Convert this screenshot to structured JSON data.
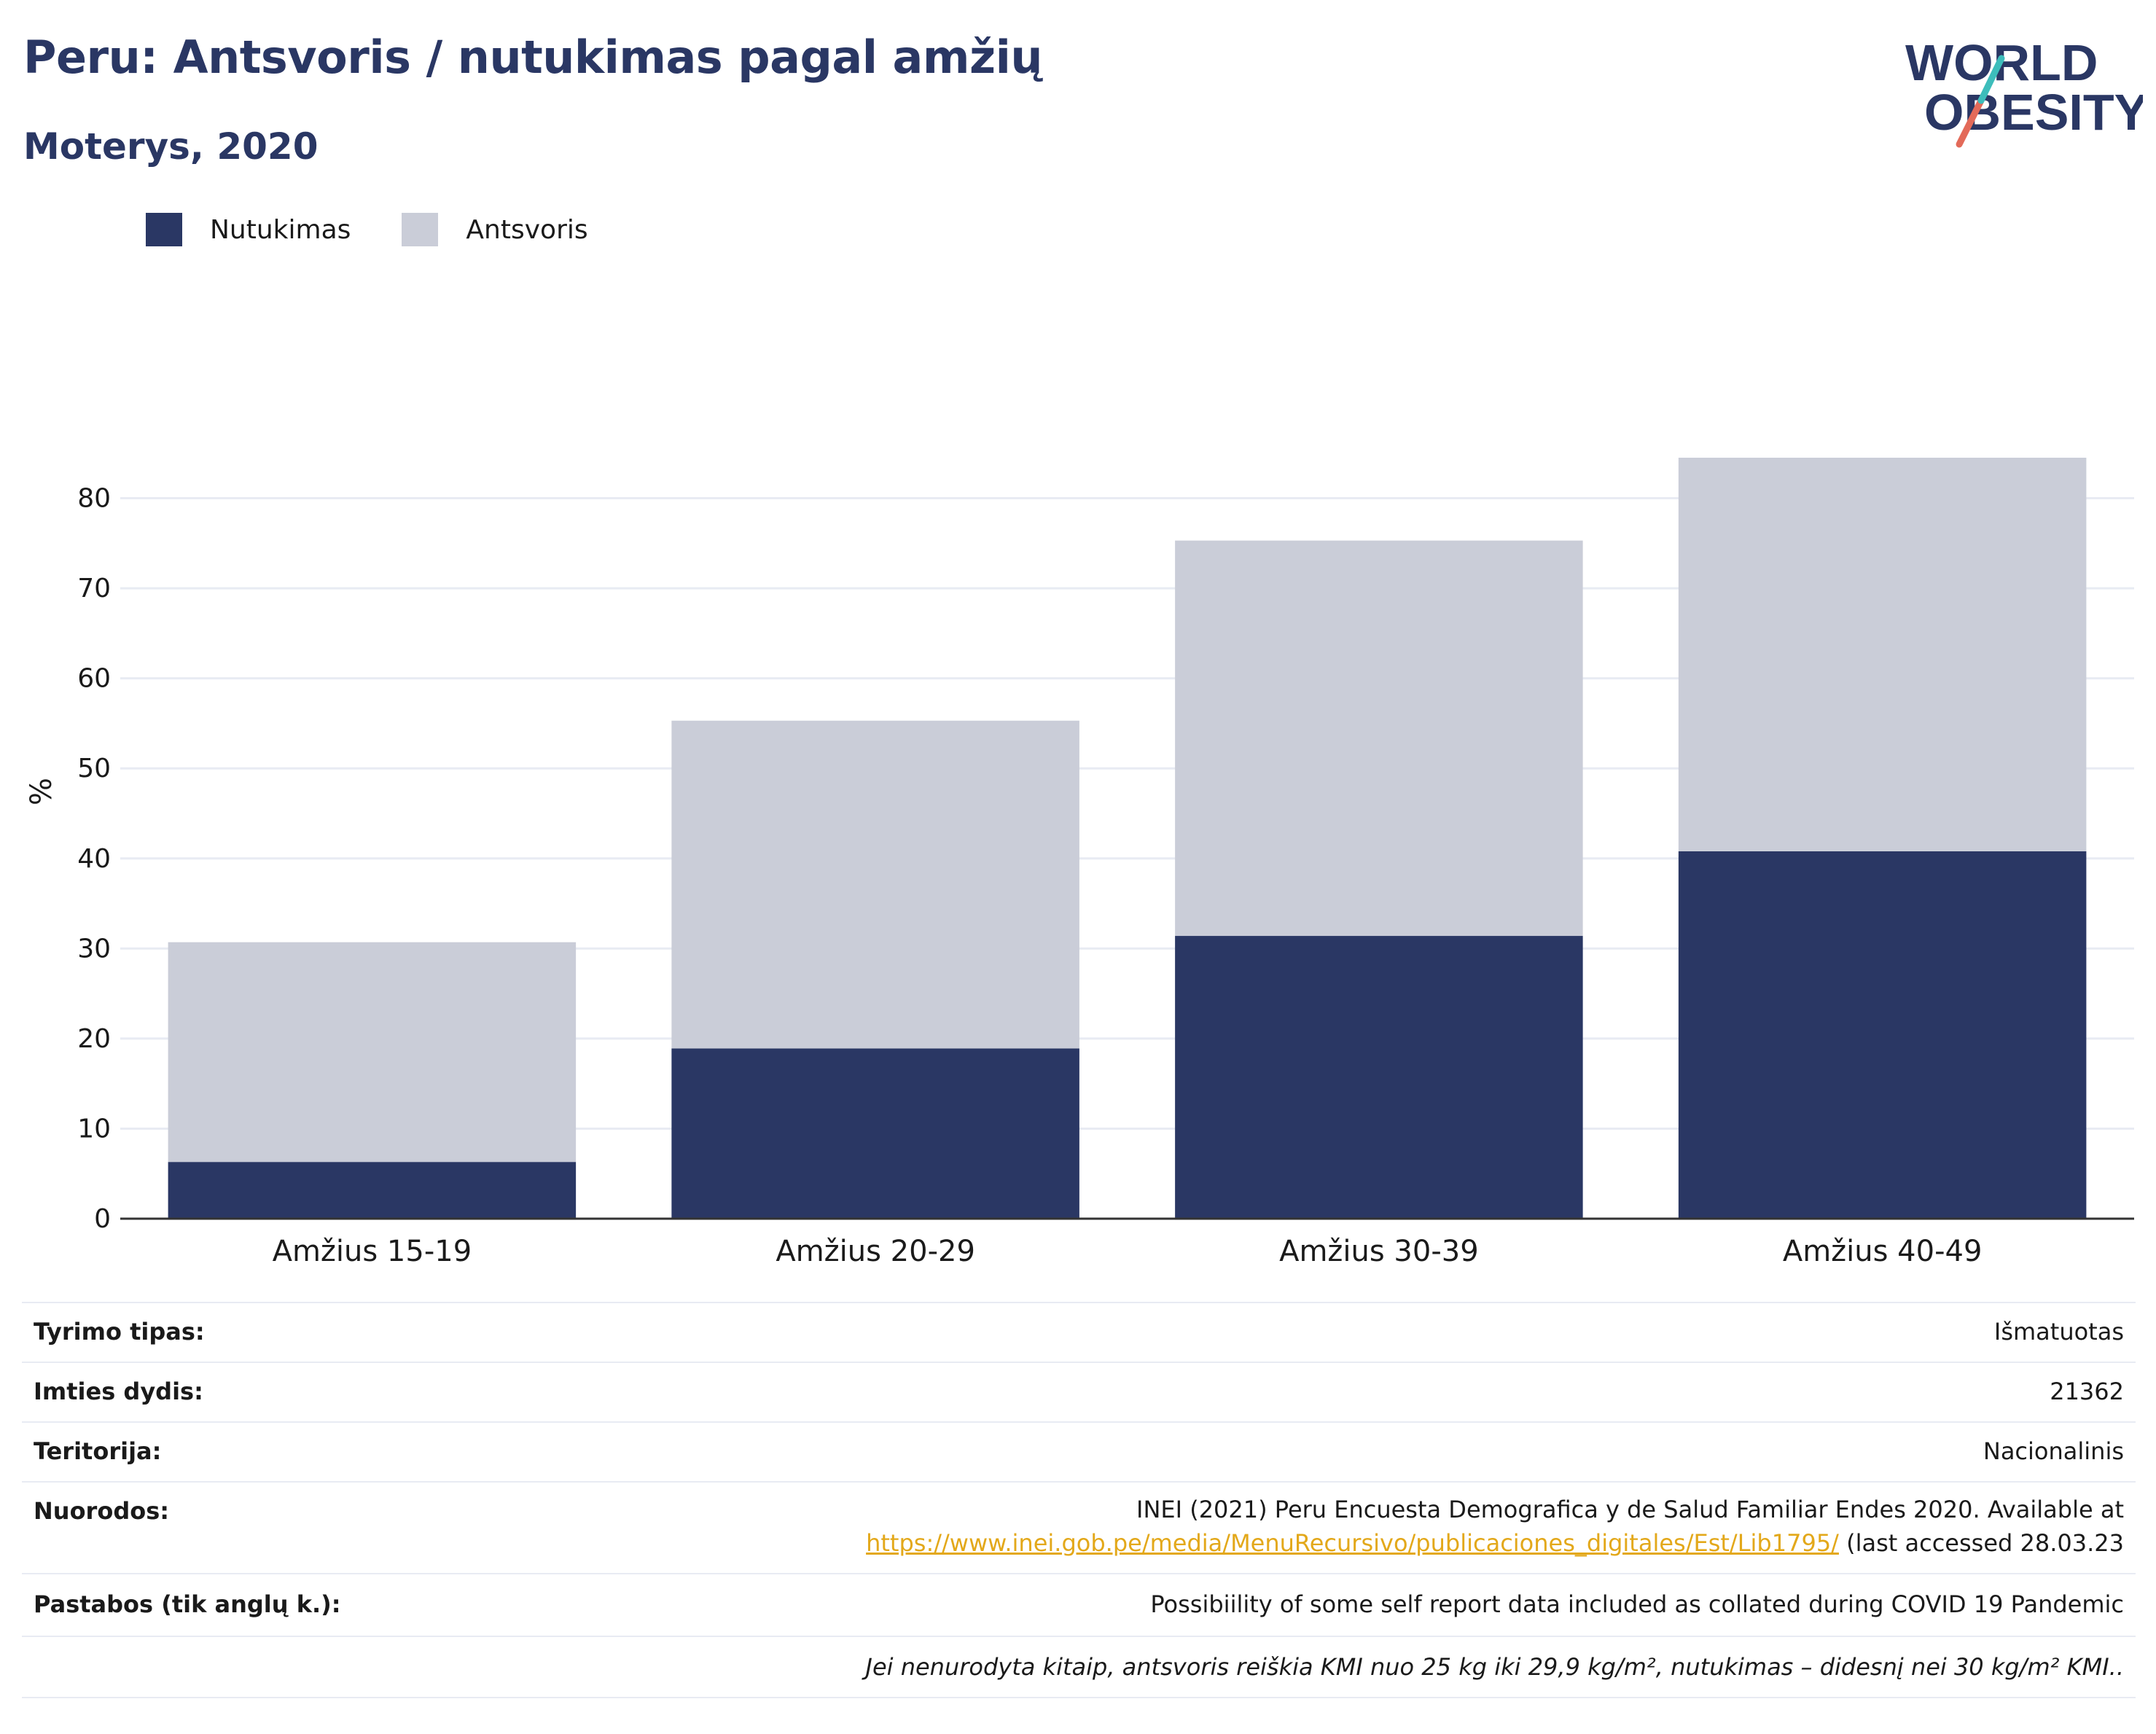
{
  "header": {
    "title": "Peru: Antsvoris / nutukimas pagal amžių",
    "subtitle": "Moterys, 2020"
  },
  "logo": {
    "line1": "WORLD",
    "line2": "OBESITY"
  },
  "legend": [
    {
      "label": "Nutukimas",
      "color": "#2a3764"
    },
    {
      "label": "Antsvoris",
      "color": "#cacdd8"
    }
  ],
  "chart_data": {
    "type": "bar",
    "stacked": true,
    "categories": [
      "Amžius 15-19",
      "Amžius 20-29",
      "Amžius 30-39",
      "Amžius 40-49"
    ],
    "series": [
      {
        "name": "Nutukimas",
        "values": [
          6.3,
          18.9,
          31.4,
          40.8
        ],
        "color": "#2a3764"
      },
      {
        "name": "Antsvoris",
        "values": [
          24.4,
          36.4,
          43.9,
          43.7
        ],
        "color": "#cacdd8"
      }
    ],
    "ylabel": "%",
    "ylim": [
      0,
      90
    ],
    "yticks": [
      0,
      10,
      20,
      30,
      40,
      50,
      60,
      70,
      80
    ],
    "grid": true,
    "legend_position": "top-left"
  },
  "info": {
    "rows": [
      {
        "label": "Tyrimo tipas:",
        "value": "Išmatuotas"
      },
      {
        "label": "Imties dydis:",
        "value": "21362"
      },
      {
        "label": "Teritorija:",
        "value": "Nacionalinis"
      }
    ],
    "references": {
      "label": "Nuorodos:",
      "line1": "INEI (2021) Peru Encuesta Demografica y de Salud Familiar Endes 2020. Available at",
      "link": "https://www.inei.gob.pe/media/MenuRecursivo/publicaciones_digitales/Est/Lib1795/",
      "suffix": " (last accessed 28.03.23"
    },
    "notes": {
      "label": "Pastabos (tik anglų k.):",
      "value": "Possibiility of some self report data included as collated during COVID 19 Pandemic"
    },
    "footnote": "Jei nenurodyta kitaip, antsvoris reiškia KMI nuo 25 kg iki 29,9 kg/m², nutukimas – didesnį nei 30 kg/m² KMI.."
  }
}
